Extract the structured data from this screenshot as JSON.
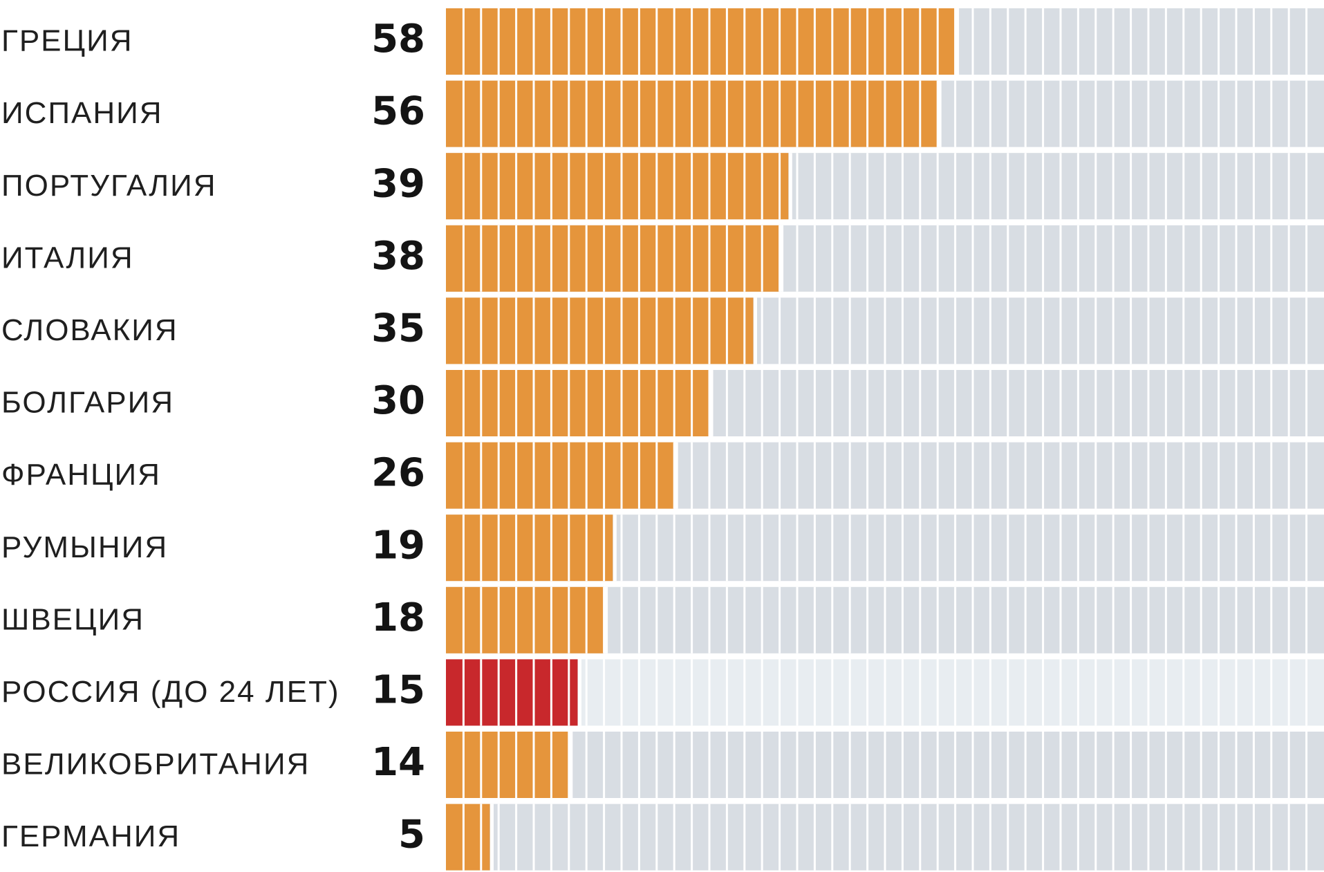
{
  "chart_data": {
    "type": "bar",
    "orientation": "horizontal",
    "title": "",
    "xlabel": "",
    "ylabel": "",
    "xlim": [
      0,
      100
    ],
    "categories": [
      "ГРЕЦИЯ",
      "ИСПАНИЯ",
      "ПОРТУГАЛИЯ",
      "ИТАЛИЯ",
      "СЛОВАКИЯ",
      "БОЛГАРИЯ",
      "ФРАНЦИЯ",
      "РУМЫНИЯ",
      "ШВЕЦИЯ",
      "РОССИЯ (ДО 24 ЛЕТ)",
      "ВЕЛИКОБРИТАНИЯ",
      "ГЕРМАНИЯ"
    ],
    "values": [
      58,
      56,
      39,
      38,
      35,
      30,
      26,
      19,
      18,
      15,
      14,
      5
    ],
    "value_labels": [
      "58",
      "56",
      "39",
      "38",
      "35",
      "30",
      "26",
      "19",
      "18",
      "15",
      "14",
      "5"
    ],
    "highlight_category": "РОССИЯ (ДО 24 ЛЕТ)",
    "colors": {
      "bar": "#e5953c",
      "highlight": "#c8282c",
      "track": "#d8dde3",
      "highlight_track": "#e8edf1",
      "divider": "#ffffff"
    },
    "grid": false,
    "legend": "none"
  }
}
